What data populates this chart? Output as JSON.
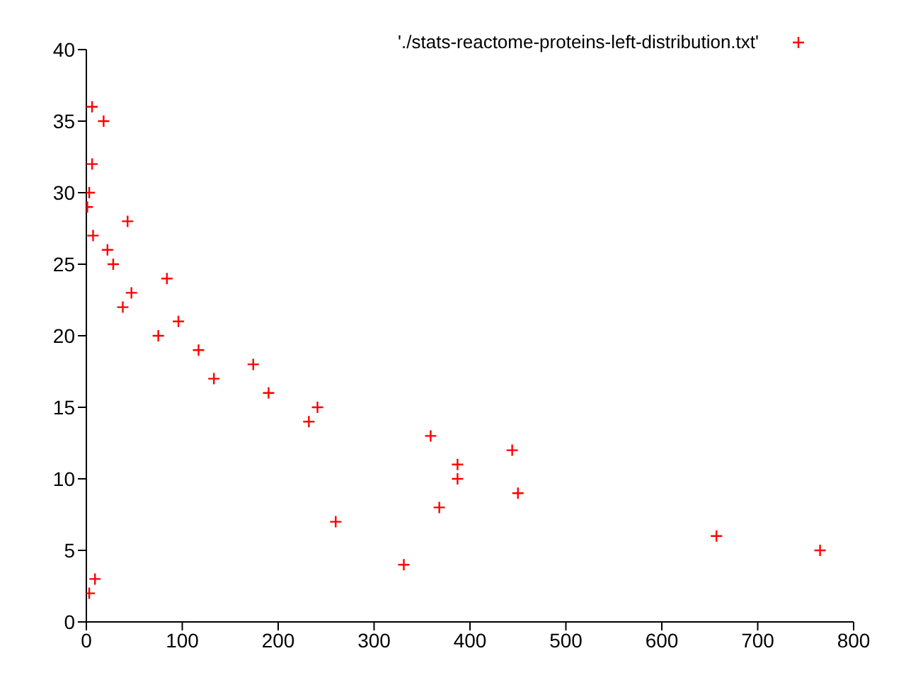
{
  "chart_data": {
    "type": "scatter",
    "x": [
      6,
      18,
      6,
      3,
      1,
      43,
      7,
      22,
      28,
      84,
      47,
      38,
      96,
      75,
      117,
      174,
      133,
      190,
      241,
      232,
      359,
      444,
      387,
      387,
      450,
      368,
      260,
      657,
      765,
      331,
      9,
      3
    ],
    "series": [
      {
        "name": "'./stats-reactome-proteins-left-distribution.txt'",
        "color": "#ff0000",
        "values": [
          36,
          35,
          32,
          30,
          29,
          28,
          27,
          26,
          25,
          24,
          23,
          22,
          21,
          20,
          19,
          18,
          17,
          16,
          15,
          14,
          13,
          12,
          11,
          10,
          9,
          8,
          7,
          6,
          5,
          4,
          3,
          2
        ]
      }
    ],
    "xlim": [
      0,
      800
    ],
    "xticks": [
      0,
      100,
      200,
      300,
      400,
      500,
      600,
      700,
      800
    ],
    "ylim": [
      0,
      40
    ],
    "yticks": [
      0,
      5,
      10,
      15,
      20,
      25,
      30,
      35,
      40
    ],
    "marker": "cross",
    "legend": "top right"
  }
}
